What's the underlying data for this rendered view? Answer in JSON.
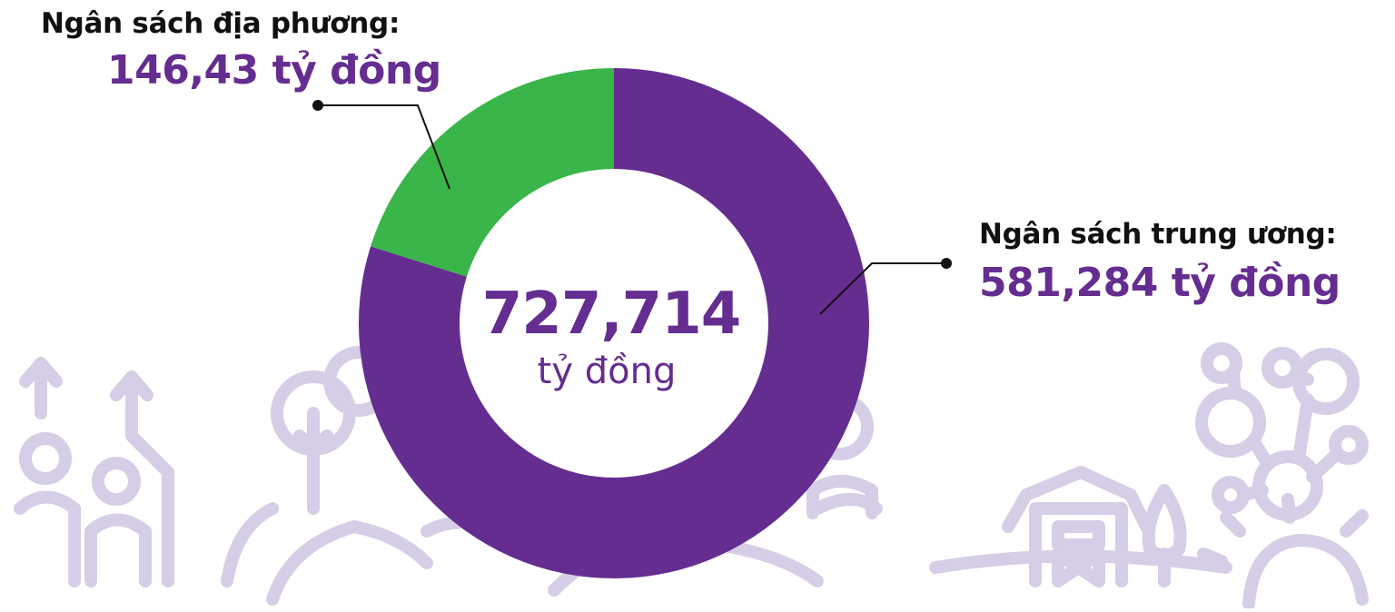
{
  "colors": {
    "purple": "#652d90",
    "green": "#3ab54a",
    "deco": "#d6cde6",
    "text_dark": "#111111",
    "leader": "#111111"
  },
  "icons": [
    "growth-arrows-people-icon",
    "tree-globe-hand-icon",
    "farm-barn-icon",
    "network-people-icon",
    "sun-icon"
  ],
  "chart_data": {
    "type": "pie",
    "donut": true,
    "unit": "tỷ đồng",
    "total": {
      "value_label": "727,714",
      "unit_label": "tỷ đồng"
    },
    "slices": [
      {
        "label": "Ngân sách trung ương:",
        "value": 581.284,
        "value_label": "581,284 tỷ đồng",
        "color": "#652d90"
      },
      {
        "label": "Ngân sách địa phương:",
        "value": 146.43,
        "value_label": "146,43 tỷ đồng",
        "color": "#3ab54a"
      }
    ]
  }
}
